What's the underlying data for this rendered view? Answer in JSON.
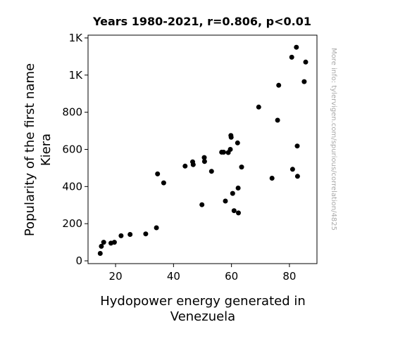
{
  "chart_data": {
    "type": "scatter",
    "title": "Years 1980-2021, r=0.806, p<0.01",
    "xlabel_lines": [
      "Hydopower energy generated in",
      "Venezuela"
    ],
    "ylabel_lines": [
      "Popularity of the first name",
      "Kiera"
    ],
    "watermark": "More info: tylervigen.com/spurious/correlation/4825",
    "xlim": [
      10.5,
      89.5
    ],
    "ylim": [
      -15,
      1215
    ],
    "x_ticks": [
      {
        "value": 20,
        "label": "20"
      },
      {
        "value": 40,
        "label": "40"
      },
      {
        "value": 60,
        "label": "60"
      },
      {
        "value": 80,
        "label": "80"
      }
    ],
    "y_ticks": [
      {
        "value": 0,
        "label": "0"
      },
      {
        "value": 200,
        "label": "200"
      },
      {
        "value": 400,
        "label": "400"
      },
      {
        "value": 600,
        "label": "600"
      },
      {
        "value": 800,
        "label": "800"
      },
      {
        "value": 1000,
        "label": "1K"
      },
      {
        "value": 1200,
        "label": "1K"
      }
    ],
    "point_color": "#000000",
    "grid": false,
    "points": [
      {
        "x": 14.7,
        "y": 40
      },
      {
        "x": 15.1,
        "y": 78
      },
      {
        "x": 15.9,
        "y": 100
      },
      {
        "x": 18.4,
        "y": 95
      },
      {
        "x": 19.6,
        "y": 100
      },
      {
        "x": 21.9,
        "y": 135
      },
      {
        "x": 25.0,
        "y": 142
      },
      {
        "x": 30.4,
        "y": 145
      },
      {
        "x": 34.1,
        "y": 178
      },
      {
        "x": 34.5,
        "y": 468
      },
      {
        "x": 36.6,
        "y": 420
      },
      {
        "x": 44.0,
        "y": 510
      },
      {
        "x": 46.6,
        "y": 533
      },
      {
        "x": 46.8,
        "y": 518
      },
      {
        "x": 49.8,
        "y": 302
      },
      {
        "x": 50.6,
        "y": 556
      },
      {
        "x": 50.7,
        "y": 535
      },
      {
        "x": 53.1,
        "y": 482
      },
      {
        "x": 56.6,
        "y": 585
      },
      {
        "x": 57.3,
        "y": 585
      },
      {
        "x": 57.9,
        "y": 322
      },
      {
        "x": 58.9,
        "y": 583
      },
      {
        "x": 59.6,
        "y": 600
      },
      {
        "x": 59.8,
        "y": 675
      },
      {
        "x": 59.9,
        "y": 665
      },
      {
        "x": 60.4,
        "y": 363
      },
      {
        "x": 60.9,
        "y": 270
      },
      {
        "x": 62.1,
        "y": 635
      },
      {
        "x": 62.3,
        "y": 392
      },
      {
        "x": 62.4,
        "y": 258
      },
      {
        "x": 63.5,
        "y": 505
      },
      {
        "x": 69.4,
        "y": 828
      },
      {
        "x": 74.0,
        "y": 445
      },
      {
        "x": 75.9,
        "y": 757
      },
      {
        "x": 76.3,
        "y": 945
      },
      {
        "x": 80.8,
        "y": 1096
      },
      {
        "x": 81.1,
        "y": 493
      },
      {
        "x": 82.4,
        "y": 1150
      },
      {
        "x": 82.7,
        "y": 618
      },
      {
        "x": 82.8,
        "y": 455
      },
      {
        "x": 85.1,
        "y": 965
      },
      {
        "x": 85.6,
        "y": 1070
      }
    ]
  }
}
